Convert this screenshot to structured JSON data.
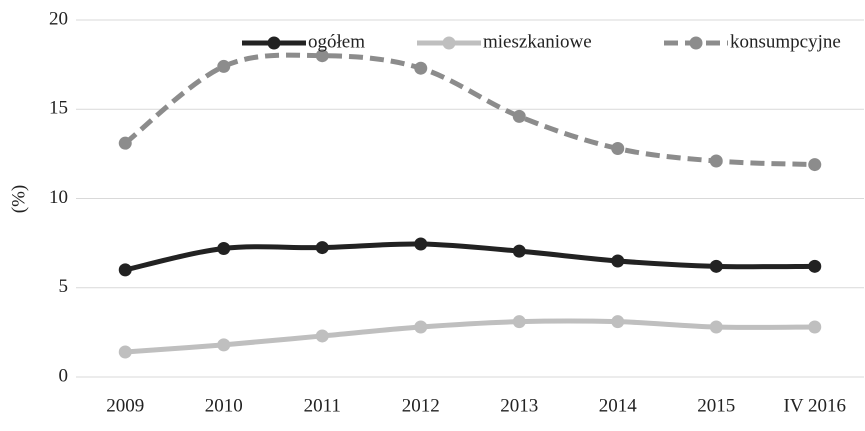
{
  "chart_data": {
    "type": "line",
    "y_label": "(%)",
    "categories": [
      "2009",
      "2010",
      "2011",
      "2012",
      "2013",
      "2014",
      "2015",
      "IV 2016"
    ],
    "series": [
      {
        "name": "ogółem",
        "color": "#222222",
        "dash": false,
        "values": [
          6.0,
          7.2,
          7.25,
          7.45,
          7.05,
          6.5,
          6.2,
          6.2
        ]
      },
      {
        "name": "mieszkaniowe",
        "color": "#bfbfbf",
        "dash": false,
        "values": [
          1.4,
          1.8,
          2.3,
          2.8,
          3.1,
          3.1,
          2.8,
          2.8
        ]
      },
      {
        "name": "konsumpcyjne",
        "color": "#8c8c8c",
        "dash": true,
        "values": [
          13.1,
          17.4,
          18.0,
          17.3,
          14.6,
          12.8,
          12.1,
          11.9
        ]
      }
    ],
    "ylim": [
      0,
      20
    ],
    "yticks": [
      0,
      5,
      10,
      15,
      20
    ],
    "grid": true,
    "legend": "top"
  }
}
